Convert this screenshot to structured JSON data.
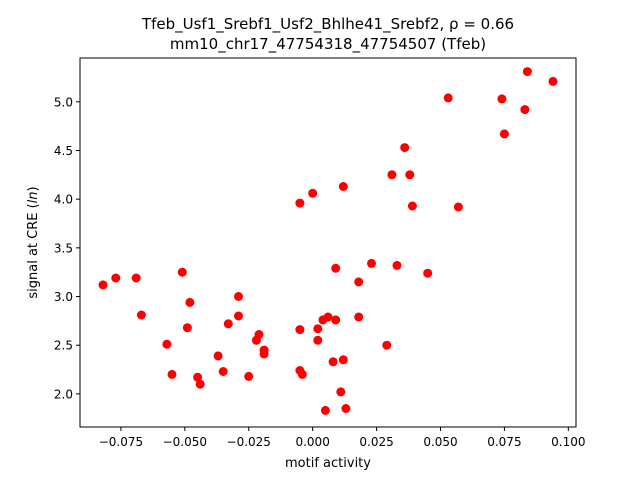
{
  "chart_data": {
    "type": "scatter",
    "title_line1": "Tfeb_Usf1_Srebf1_Usf2_Bhlhe41_Srebf2, ρ = 0.66",
    "title_line2": "mm10_chr17_47754318_47754507 (Tfeb)",
    "xlabel": "motif activity",
    "ylabel_prefix": "signal at CRE (",
    "ylabel_italic": "ln",
    "ylabel_suffix": ")",
    "xlim": [
      -0.091,
      0.103
    ],
    "ylim": [
      1.66,
      5.45
    ],
    "xticks": [
      {
        "value": -0.075,
        "label": "−0.075"
      },
      {
        "value": -0.05,
        "label": "−0.050"
      },
      {
        "value": -0.025,
        "label": "−0.025"
      },
      {
        "value": 0.0,
        "label": "0.000"
      },
      {
        "value": 0.025,
        "label": "0.025"
      },
      {
        "value": 0.05,
        "label": "0.050"
      },
      {
        "value": 0.075,
        "label": "0.075"
      },
      {
        "value": 0.1,
        "label": "0.100"
      }
    ],
    "yticks": [
      {
        "value": 2.0,
        "label": "2.0"
      },
      {
        "value": 2.5,
        "label": "2.5"
      },
      {
        "value": 3.0,
        "label": "3.0"
      },
      {
        "value": 3.5,
        "label": "3.5"
      },
      {
        "value": 4.0,
        "label": "4.0"
      },
      {
        "value": 4.5,
        "label": "4.5"
      },
      {
        "value": 5.0,
        "label": "5.0"
      }
    ],
    "marker_color": "#ff0000",
    "grid": false,
    "points": [
      {
        "x": -0.082,
        "y": 3.12
      },
      {
        "x": -0.077,
        "y": 3.19
      },
      {
        "x": -0.069,
        "y": 3.19
      },
      {
        "x": -0.067,
        "y": 2.81
      },
      {
        "x": -0.057,
        "y": 2.51
      },
      {
        "x": -0.055,
        "y": 2.2
      },
      {
        "x": -0.051,
        "y": 3.25
      },
      {
        "x": -0.049,
        "y": 2.68
      },
      {
        "x": -0.048,
        "y": 2.94
      },
      {
        "x": -0.045,
        "y": 2.17
      },
      {
        "x": -0.044,
        "y": 2.1
      },
      {
        "x": -0.037,
        "y": 2.39
      },
      {
        "x": -0.035,
        "y": 2.23
      },
      {
        "x": -0.033,
        "y": 2.72
      },
      {
        "x": -0.029,
        "y": 3.0
      },
      {
        "x": -0.029,
        "y": 2.8
      },
      {
        "x": -0.025,
        "y": 2.18
      },
      {
        "x": -0.022,
        "y": 2.55
      },
      {
        "x": -0.021,
        "y": 2.61
      },
      {
        "x": -0.019,
        "y": 2.41
      },
      {
        "x": -0.019,
        "y": 2.45
      },
      {
        "x": -0.005,
        "y": 3.96
      },
      {
        "x": -0.005,
        "y": 2.66
      },
      {
        "x": -0.005,
        "y": 2.24
      },
      {
        "x": -0.004,
        "y": 2.2
      },
      {
        "x": 0.0,
        "y": 4.06
      },
      {
        "x": 0.002,
        "y": 2.67
      },
      {
        "x": 0.002,
        "y": 2.55
      },
      {
        "x": 0.004,
        "y": 2.76
      },
      {
        "x": 0.005,
        "y": 1.83
      },
      {
        "x": 0.006,
        "y": 2.79
      },
      {
        "x": 0.008,
        "y": 2.33
      },
      {
        "x": 0.009,
        "y": 2.76
      },
      {
        "x": 0.009,
        "y": 3.29
      },
      {
        "x": 0.011,
        "y": 2.02
      },
      {
        "x": 0.012,
        "y": 4.13
      },
      {
        "x": 0.012,
        "y": 2.35
      },
      {
        "x": 0.013,
        "y": 1.85
      },
      {
        "x": 0.018,
        "y": 3.15
      },
      {
        "x": 0.018,
        "y": 2.79
      },
      {
        "x": 0.023,
        "y": 3.34
      },
      {
        "x": 0.029,
        "y": 2.5
      },
      {
        "x": 0.031,
        "y": 4.25
      },
      {
        "x": 0.033,
        "y": 3.32
      },
      {
        "x": 0.036,
        "y": 4.53
      },
      {
        "x": 0.038,
        "y": 4.25
      },
      {
        "x": 0.039,
        "y": 3.93
      },
      {
        "x": 0.045,
        "y": 3.24
      },
      {
        "x": 0.053,
        "y": 5.04
      },
      {
        "x": 0.057,
        "y": 3.92
      },
      {
        "x": 0.074,
        "y": 5.03
      },
      {
        "x": 0.075,
        "y": 4.67
      },
      {
        "x": 0.083,
        "y": 4.92
      },
      {
        "x": 0.084,
        "y": 5.31
      },
      {
        "x": 0.094,
        "y": 5.21
      }
    ]
  }
}
